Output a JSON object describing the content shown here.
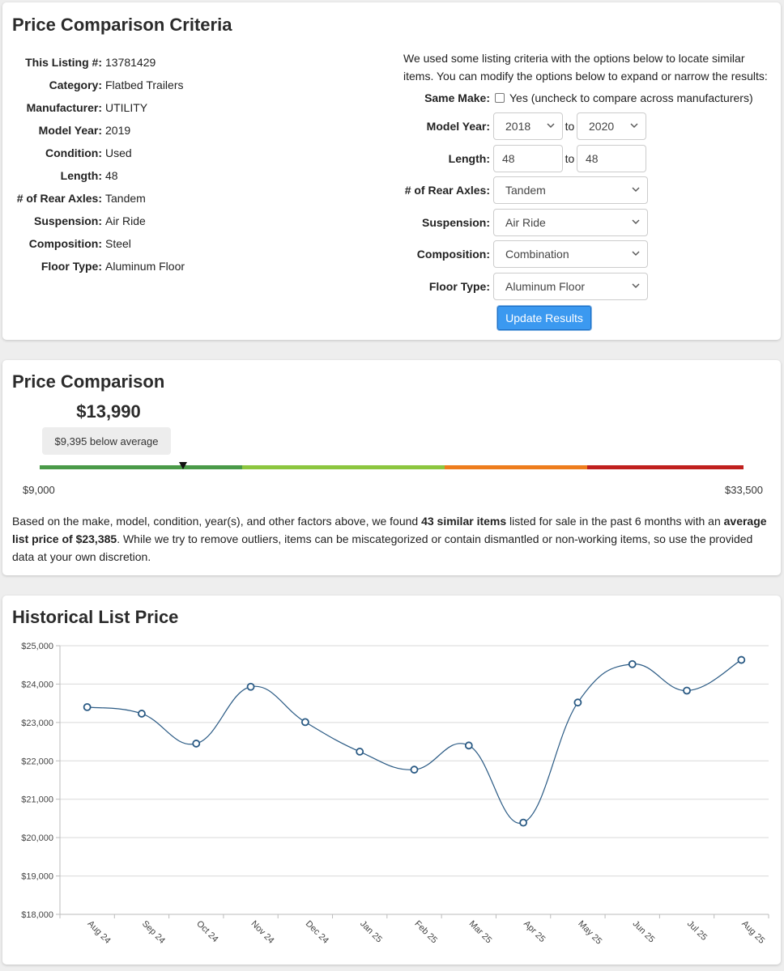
{
  "criteria": {
    "title": "Price Comparison Criteria",
    "details": [
      {
        "label": "This Listing #:",
        "value": "13781429"
      },
      {
        "label": "Category:",
        "value": "Flatbed Trailers"
      },
      {
        "label": "Manufacturer:",
        "value": "UTILITY"
      },
      {
        "label": "Model Year:",
        "value": "2019"
      },
      {
        "label": "Condition:",
        "value": "Used"
      },
      {
        "label": "Length:",
        "value": "48"
      },
      {
        "label": "# of Rear Axles:",
        "value": "Tandem"
      },
      {
        "label": "Suspension:",
        "value": "Air Ride"
      },
      {
        "label": "Composition:",
        "value": "Steel"
      },
      {
        "label": "Floor Type:",
        "value": "Aluminum Floor"
      }
    ],
    "intro": "We used some listing criteria with the options below to locate similar items. You can modify the options below to expand or narrow the results:",
    "same_make": {
      "label": "Same Make:",
      "checked": false,
      "text": "Yes (uncheck to compare across manufacturers)"
    },
    "model_year": {
      "label": "Model Year:",
      "from": "2018",
      "to_text": "to",
      "to": "2020"
    },
    "length": {
      "label": "Length:",
      "from": "48",
      "to_text": "to",
      "to": "48"
    },
    "rear_axles": {
      "label": "# of Rear Axles:",
      "value": "Tandem"
    },
    "suspension": {
      "label": "Suspension:",
      "value": "Air Ride"
    },
    "composition": {
      "label": "Composition:",
      "value": "Combination"
    },
    "floor_type": {
      "label": "Floor Type:",
      "value": "Aluminum Floor"
    },
    "update_button": "Update Results"
  },
  "comparison": {
    "title": "Price Comparison",
    "price": "$13,990",
    "badge": "$9,395 below average",
    "min": "$9,000",
    "max": "$33,500",
    "marker_price": 13990,
    "range": [
      9000,
      33500
    ],
    "segments": [
      {
        "from": 9000,
        "to": 16050,
        "color": "#4a9a48"
      },
      {
        "from": 16050,
        "to": 23100,
        "color": "#8cc63f"
      },
      {
        "from": 23100,
        "to": 28050,
        "color": "#ee7d1c"
      },
      {
        "from": 28050,
        "to": 33500,
        "color": "#c0201e"
      }
    ],
    "summary": {
      "p1": "Based on the make, model, condition, year(s), and other factors above, we found ",
      "b1": "43 similar items",
      "p2": " listed for sale in the past 6 months with an ",
      "b2": "average list price of $23,385",
      "p3": ". While we try to remove outliers, items can be miscategorized or contain dismantled or non-working items, so use the provided data at your own discretion."
    }
  },
  "historical": {
    "title": "Historical List Price"
  },
  "chart_data": {
    "type": "line",
    "title": "Historical List Price",
    "xlabel": "",
    "ylabel": "",
    "categories": [
      "Aug 24",
      "Sep 24",
      "Oct 24",
      "Nov 24",
      "Dec 24",
      "Jan 25",
      "Feb 25",
      "Mar 25",
      "Apr 25",
      "May 25",
      "Jun 25",
      "Jul 25",
      "Aug 25"
    ],
    "values": [
      23400,
      23230,
      22450,
      23930,
      23010,
      22240,
      21770,
      22400,
      20390,
      23520,
      24520,
      23830,
      24630
    ],
    "ylim": [
      18000,
      25000
    ],
    "yticks": [
      18000,
      19000,
      20000,
      21000,
      22000,
      23000,
      24000,
      25000
    ],
    "ytick_labels": [
      "$18,000",
      "$19,000",
      "$20,000",
      "$21,000",
      "$22,000",
      "$23,000",
      "$24,000",
      "$25,000"
    ],
    "grid": true,
    "line_color": "#2a5a84"
  }
}
